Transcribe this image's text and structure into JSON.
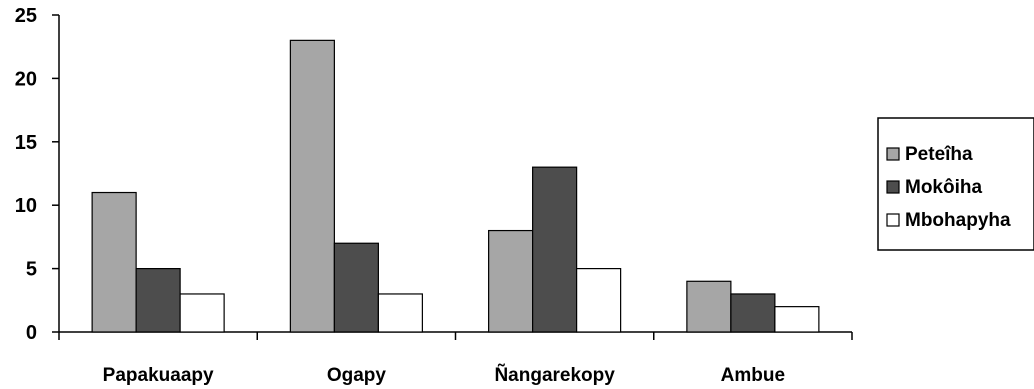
{
  "chart_data": {
    "type": "bar",
    "title": "",
    "xlabel": "",
    "ylabel": "",
    "categories": [
      "Papakuaapy",
      "Ogapy",
      "Ñangarekopy",
      "Ambue"
    ],
    "series": [
      {
        "name": "Peteîha",
        "values": [
          11,
          23,
          8,
          4
        ],
        "color": "#a6a6a6"
      },
      {
        "name": "Mokôiha",
        "values": [
          5,
          7,
          13,
          3
        ],
        "color": "#4d4d4d"
      },
      {
        "name": "Mbohapyha",
        "values": [
          3,
          3,
          5,
          2
        ],
        "color": "#ffffff"
      }
    ],
    "ylim": [
      0,
      25
    ],
    "yticks": [
      0,
      5,
      10,
      15,
      20,
      25
    ],
    "grid": false,
    "legend_position": "right"
  }
}
